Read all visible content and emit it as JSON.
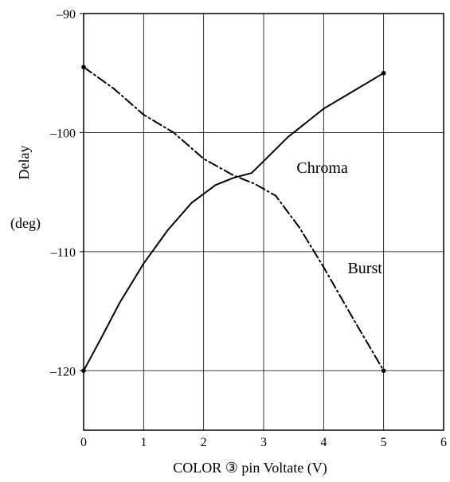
{
  "chart_data": {
    "type": "line",
    "xlabel": "COLOR ③ pin Voltate (V)",
    "ylabel": "Delay",
    "yunit": "(deg)",
    "xlim": [
      0,
      6
    ],
    "ylim": [
      -125,
      -90
    ],
    "x_ticks": [
      0,
      1,
      2,
      3,
      4,
      5,
      6
    ],
    "y_ticks": [
      -90,
      -100,
      -110,
      -120
    ],
    "x_tick_labels": [
      "0",
      "1",
      "2",
      "3",
      "4",
      "5",
      "6"
    ],
    "y_tick_labels": [
      "‒90",
      "‒100",
      "‒110",
      "‒120"
    ],
    "grid": true,
    "series": [
      {
        "name": "Chroma",
        "style": "solid",
        "points": [
          [
            0,
            -120
          ],
          [
            0.3,
            -117.2
          ],
          [
            0.6,
            -114.3
          ],
          [
            1.0,
            -111.0
          ],
          [
            1.4,
            -108.2
          ],
          [
            1.8,
            -105.9
          ],
          [
            2.2,
            -104.4
          ],
          [
            2.5,
            -103.8
          ],
          [
            2.8,
            -103.4
          ],
          [
            3.0,
            -102.4
          ],
          [
            3.4,
            -100.4
          ],
          [
            4.0,
            -98.0
          ],
          [
            4.5,
            -96.5
          ],
          [
            5.0,
            -95.0
          ]
        ]
      },
      {
        "name": "Burst",
        "style": "dashdot",
        "points": [
          [
            0,
            -94.5
          ],
          [
            0.5,
            -96.3
          ],
          [
            1.0,
            -98.5
          ],
          [
            1.5,
            -100.0
          ],
          [
            2.0,
            -102.2
          ],
          [
            2.5,
            -103.6
          ],
          [
            2.85,
            -104.3
          ],
          [
            3.2,
            -105.3
          ],
          [
            3.6,
            -108.0
          ],
          [
            4.0,
            -111.3
          ],
          [
            4.5,
            -115.7
          ],
          [
            5.0,
            -120.0
          ]
        ]
      }
    ],
    "annotations": [
      {
        "text": "Chroma",
        "x": 3.55,
        "y": -103.4
      },
      {
        "text": "Burst",
        "x": 4.4,
        "y": -111.8
      }
    ],
    "colors": {
      "line": "#000000",
      "grid": "#000000",
      "background": "#ffffff"
    }
  }
}
